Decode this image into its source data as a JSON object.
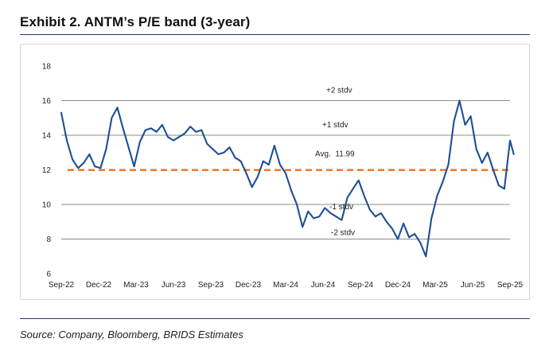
{
  "header": {
    "title": "Exhibit 2. ANTM’s P/E band (3-year)"
  },
  "footer": {
    "source": "Source: Company, Bloomberg, BRIDS Estimates"
  },
  "colors": {
    "series": "#1f4e96",
    "average": "#ed7d31",
    "band": "#8c8c8c",
    "rule": "#1f3d6b"
  },
  "chart_data": {
    "type": "line",
    "title": "Exhibit 2. ANTM’s P/E band (3-year)",
    "xlabel": "",
    "ylabel": "",
    "ylim": [
      6,
      18
    ],
    "yticks": [
      6,
      8,
      10,
      12,
      14,
      16,
      18
    ],
    "xticks": [
      "Sep-22",
      "Dec-22",
      "Mar-23",
      "Jun-23",
      "Sep-23",
      "Dec-23",
      "Mar-24",
      "Jun-24",
      "Sep-24",
      "Dec-24",
      "Mar-25",
      "Jun-25",
      "Sep-25"
    ],
    "grid": false,
    "bands": [
      {
        "name": "+2 stdv",
        "value": 16.0,
        "label": "+2 stdv"
      },
      {
        "name": "+1 stdv",
        "value": 14.0,
        "label": "+1 stdv"
      },
      {
        "name": "avg",
        "value": 11.99,
        "label": "Avg.  11.99"
      },
      {
        "name": "-1 stdv",
        "value": 10.0,
        "label": "-1 stdv"
      },
      {
        "name": "-2 stdv",
        "value": 8.0,
        "label": "-2 stdv"
      }
    ],
    "series": [
      {
        "name": "ANTM P/E",
        "x": [
          0,
          0.15,
          0.3,
          0.45,
          0.6,
          0.75,
          0.9,
          1.05,
          1.2,
          1.35,
          1.5,
          1.65,
          1.8,
          1.95,
          2.1,
          2.25,
          2.4,
          2.55,
          2.7,
          2.85,
          3.0,
          3.15,
          3.3,
          3.45,
          3.6,
          3.75,
          3.9,
          4.05,
          4.2,
          4.35,
          4.5,
          4.65,
          4.8,
          4.95,
          5.1,
          5.25,
          5.4,
          5.55,
          5.7,
          5.85,
          6.0,
          6.15,
          6.3,
          6.45,
          6.6,
          6.75,
          6.9,
          7.05,
          7.2,
          7.35,
          7.5,
          7.65,
          7.8,
          7.95,
          8.1,
          8.25,
          8.4,
          8.55,
          8.7,
          8.85,
          9.0,
          9.15,
          9.3,
          9.45,
          9.6,
          9.75,
          9.9,
          10.05,
          10.2,
          10.35,
          10.5,
          10.65,
          10.8,
          10.95,
          11.1,
          11.25,
          11.4,
          11.55,
          11.7,
          11.85,
          12.0,
          12.1
        ],
        "values": [
          15.3,
          13.7,
          12.6,
          12.1,
          12.4,
          12.9,
          12.2,
          12.1,
          13.2,
          15.0,
          15.6,
          14.4,
          13.3,
          12.2,
          13.6,
          14.3,
          14.4,
          14.2,
          14.6,
          13.9,
          13.7,
          13.9,
          14.1,
          14.5,
          14.2,
          14.3,
          13.5,
          13.2,
          12.9,
          13.0,
          13.3,
          12.7,
          12.5,
          11.8,
          11.0,
          11.6,
          12.5,
          12.3,
          13.4,
          12.3,
          11.8,
          10.8,
          10.0,
          8.7,
          9.6,
          9.2,
          9.3,
          9.8,
          9.5,
          9.3,
          9.1,
          10.4,
          10.9,
          11.4,
          10.5,
          9.7,
          9.3,
          9.5,
          9.0,
          8.6,
          8.0,
          8.9,
          8.1,
          8.3,
          7.8,
          7.0,
          9.2,
          10.5,
          11.3,
          12.3,
          14.8,
          16.0,
          14.6,
          15.1,
          13.2,
          12.4,
          13.0,
          12.0,
          11.1,
          10.9,
          13.7,
          12.9
        ]
      }
    ]
  }
}
